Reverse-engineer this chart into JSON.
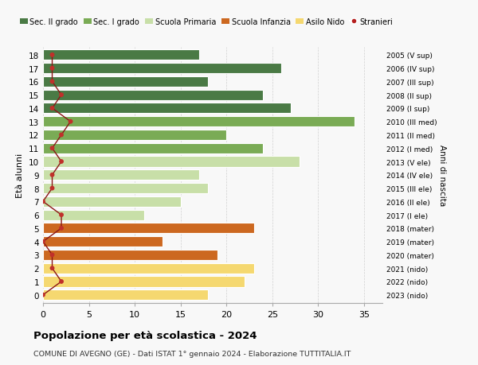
{
  "ages": [
    18,
    17,
    16,
    15,
    14,
    13,
    12,
    11,
    10,
    9,
    8,
    7,
    6,
    5,
    4,
    3,
    2,
    1,
    0
  ],
  "anni_nascita": [
    "2005 (V sup)",
    "2006 (IV sup)",
    "2007 (III sup)",
    "2008 (II sup)",
    "2009 (I sup)",
    "2010 (III med)",
    "2011 (II med)",
    "2012 (I med)",
    "2013 (V ele)",
    "2014 (IV ele)",
    "2015 (III ele)",
    "2016 (II ele)",
    "2017 (I ele)",
    "2018 (mater)",
    "2019 (mater)",
    "2020 (mater)",
    "2021 (nido)",
    "2022 (nido)",
    "2023 (nido)"
  ],
  "bar_values": [
    17,
    26,
    18,
    24,
    27,
    34,
    20,
    24,
    28,
    17,
    18,
    15,
    11,
    23,
    13,
    19,
    23,
    22,
    18
  ],
  "bar_colors": [
    "#4a7a45",
    "#4a7a45",
    "#4a7a45",
    "#4a7a45",
    "#4a7a45",
    "#7aab55",
    "#7aab55",
    "#7aab55",
    "#c8dfa8",
    "#c8dfa8",
    "#c8dfa8",
    "#c8dfa8",
    "#c8dfa8",
    "#cc6820",
    "#cc6820",
    "#cc6820",
    "#f5d870",
    "#f5d870",
    "#f5d870"
  ],
  "stranieri_values": [
    1,
    1,
    1,
    2,
    1,
    3,
    2,
    1,
    2,
    1,
    1,
    0,
    2,
    2,
    0,
    1,
    1,
    2,
    0
  ],
  "legend_labels": [
    "Sec. II grado",
    "Sec. I grado",
    "Scuola Primaria",
    "Scuola Infanzia",
    "Asilo Nido",
    "Stranieri"
  ],
  "legend_colors": [
    "#4a7a45",
    "#7aab55",
    "#c8dfa8",
    "#cc6820",
    "#f5d870",
    "#b52020"
  ],
  "ylabel": "Età alunni",
  "right_label": "Anni di nascita",
  "title": "Popolazione per età scolastica - 2024",
  "subtitle": "COMUNE DI AVEGNO (GE) - Dati ISTAT 1° gennaio 2024 - Elaborazione TUTTITALIA.IT",
  "xlim": [
    0,
    37
  ],
  "xticks": [
    0,
    5,
    10,
    15,
    20,
    25,
    30,
    35
  ],
  "bg_color": "#f8f8f8",
  "grid_color": "#cccccc"
}
